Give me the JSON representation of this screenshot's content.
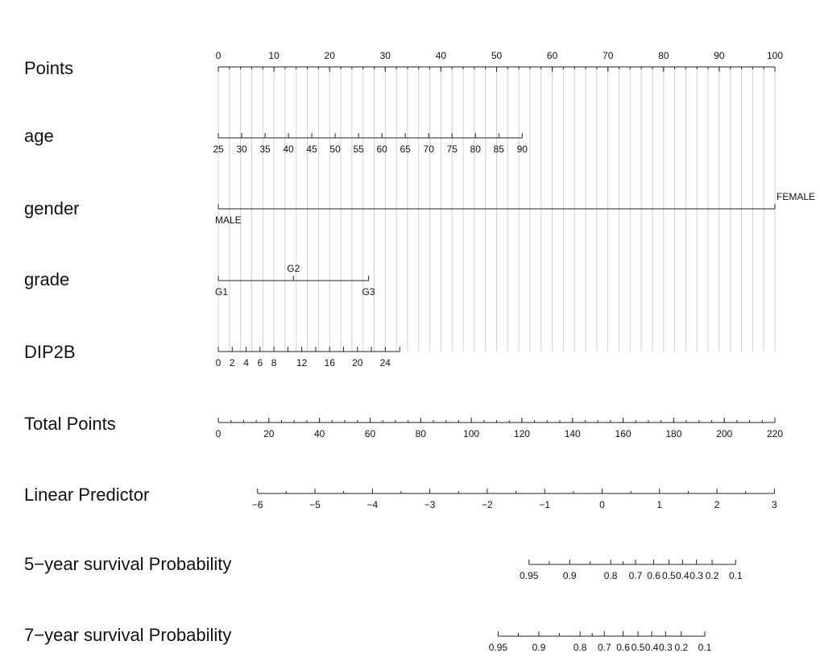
{
  "chart_data": {
    "type": "nomogram",
    "points_max": 100,
    "total_points_max": 220,
    "grid": true,
    "rows": [
      {
        "label": "Points",
        "ticks": [
          {
            "text": "0",
            "points": 0
          },
          {
            "text": "10",
            "points": 10
          },
          {
            "text": "20",
            "points": 20
          },
          {
            "text": "30",
            "points": 30
          },
          {
            "text": "40",
            "points": 40
          },
          {
            "text": "50",
            "points": 50
          },
          {
            "text": "60",
            "points": 60
          },
          {
            "text": "70",
            "points": 70
          },
          {
            "text": "80",
            "points": 80
          },
          {
            "text": "90",
            "points": 90
          },
          {
            "text": "100",
            "points": 100
          }
        ],
        "minor_step": 2
      },
      {
        "label": "age",
        "ticks": [
          {
            "text": "25",
            "points": 0
          },
          {
            "text": "30",
            "points": 4.2
          },
          {
            "text": "35",
            "points": 8.4
          },
          {
            "text": "40",
            "points": 12.6
          },
          {
            "text": "45",
            "points": 16.8
          },
          {
            "text": "50",
            "points": 21.0
          },
          {
            "text": "55",
            "points": 25.2
          },
          {
            "text": "60",
            "points": 29.4
          },
          {
            "text": "65",
            "points": 33.6
          },
          {
            "text": "70",
            "points": 37.8
          },
          {
            "text": "75",
            "points": 42.0
          },
          {
            "text": "80",
            "points": 46.2
          },
          {
            "text": "85",
            "points": 50.4
          },
          {
            "text": "90",
            "points": 54.6
          }
        ]
      },
      {
        "label": "gender",
        "ticks": [
          {
            "text": "MALE",
            "points": 0,
            "pos": "below"
          },
          {
            "text": "FEMALE",
            "points": 100,
            "pos": "above"
          }
        ]
      },
      {
        "label": "grade",
        "ticks": [
          {
            "text": "G1",
            "points": 0,
            "pos": "below"
          },
          {
            "text": "G2",
            "points": 13.5,
            "pos": "above"
          },
          {
            "text": "G3",
            "points": 27,
            "pos": "below"
          }
        ]
      },
      {
        "label": "DIP2B",
        "ticks": [
          {
            "text": "0",
            "points": 0
          },
          {
            "text": "2",
            "points": 2.5
          },
          {
            "text": "4",
            "points": 5
          },
          {
            "text": "6",
            "points": 7.5
          },
          {
            "text": "8",
            "points": 10
          },
          {
            "text": "",
            "points": 12.5
          },
          {
            "text": "12",
            "points": 15
          },
          {
            "text": "",
            "points": 17.5
          },
          {
            "text": "16",
            "points": 20
          },
          {
            "text": "",
            "points": 22.5
          },
          {
            "text": "20",
            "points": 25
          },
          {
            "text": "",
            "points": 27.5
          },
          {
            "text": "24",
            "points": 30
          },
          {
            "text": "",
            "points": 32.6
          }
        ]
      },
      {
        "label": "Total Points",
        "scale": "total",
        "ticks": [
          {
            "text": "0",
            "points": 0
          },
          {
            "text": "20",
            "points": 20
          },
          {
            "text": "40",
            "points": 40
          },
          {
            "text": "60",
            "points": 60
          },
          {
            "text": "80",
            "points": 80
          },
          {
            "text": "100",
            "points": 100
          },
          {
            "text": "120",
            "points": 120
          },
          {
            "text": "140",
            "points": 140
          },
          {
            "text": "160",
            "points": 160
          },
          {
            "text": "180",
            "points": 180
          },
          {
            "text": "200",
            "points": 200
          },
          {
            "text": "220",
            "points": 220
          }
        ],
        "minor_step": 5
      },
      {
        "label": "Linear Predictor",
        "scale": "total",
        "ticks": [
          {
            "text": "−6",
            "points": 15.5
          },
          {
            "text": "−5",
            "points": 38.2
          },
          {
            "text": "−4",
            "points": 60.9
          },
          {
            "text": "−3",
            "points": 83.6
          },
          {
            "text": "−2",
            "points": 106.3
          },
          {
            "text": "−1",
            "points": 129.0
          },
          {
            "text": "0",
            "points": 151.7
          },
          {
            "text": "1",
            "points": 174.4
          },
          {
            "text": "2",
            "points": 197.1
          },
          {
            "text": "3",
            "points": 219.8
          }
        ],
        "minor_step_between": 2
      },
      {
        "label": "5−year survival Probability",
        "scale": "total",
        "ticks": [
          {
            "text": "0.95",
            "points": 122.8
          },
          {
            "text": "0.9",
            "points": 138.9
          },
          {
            "text": "0.8",
            "points": 155.1
          },
          {
            "text": "0.7",
            "points": 164.9
          },
          {
            "text": "0.6",
            "points": 172.1
          },
          {
            "text": "0.5",
            "points": 178.1
          },
          {
            "text": "0.4",
            "points": 183.5
          },
          {
            "text": "0.3",
            "points": 189.0
          },
          {
            "text": "0.2",
            "points": 195.2
          },
          {
            "text": "0.1",
            "points": 204.5
          }
        ],
        "extra_minor": [
          130.8,
          147.0,
          160.0
        ]
      },
      {
        "label": "7−year survival Probability",
        "scale": "total",
        "ticks": [
          {
            "text": "0.95",
            "points": 110.6
          },
          {
            "text": "0.9",
            "points": 126.7
          },
          {
            "text": "0.8",
            "points": 143.0
          },
          {
            "text": "0.7",
            "points": 152.6
          },
          {
            "text": "0.6",
            "points": 160.0
          },
          {
            "text": "0.5",
            "points": 165.9
          },
          {
            "text": "0.4",
            "points": 171.3
          },
          {
            "text": "0.3",
            "points": 176.8
          },
          {
            "text": "0.2",
            "points": 183.0
          },
          {
            "text": "0.1",
            "points": 192.3
          }
        ],
        "extra_minor": [
          118.6,
          134.8,
          147.8
        ]
      }
    ]
  }
}
